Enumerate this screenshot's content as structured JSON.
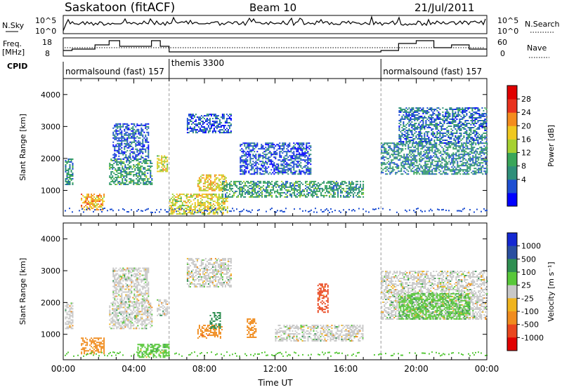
{
  "header": {
    "title": "Saskatoon (fitACF)",
    "beam": "Beam 10",
    "date": "21/Jul/2011"
  },
  "strip_nsky": {
    "left_label": "N.Sky",
    "left_ticks": [
      "10^5",
      "10^0"
    ],
    "right_ticks": [
      "10^5",
      "10^0"
    ],
    "right_label": "N.Search",
    "right_label_style": "dotted"
  },
  "strip_freq": {
    "left_label_line1": "Freq.",
    "left_label_line2": "[MHz]",
    "left_ticks": [
      "18",
      "8"
    ],
    "right_ticks": [
      "60",
      "0"
    ],
    "right_label": "Nave",
    "right_label_style": "dotted"
  },
  "cpid": {
    "label": "CPID",
    "segments": [
      {
        "start_hour": 0,
        "end_hour": 6,
        "text": "normalsound (fast) 157"
      },
      {
        "start_hour": 6,
        "end_hour": 18,
        "text": "themis 3300"
      },
      {
        "start_hour": 18,
        "end_hour": 24,
        "text": "normalsound (fast) 157"
      }
    ]
  },
  "chart_data": [
    {
      "type": "heatmap",
      "name": "power",
      "xlabel": "",
      "ylabel": "Slant Range [km]",
      "xlim": [
        0,
        24
      ],
      "ylim": [
        200,
        4500
      ],
      "yticks": [
        1000,
        2000,
        3000,
        4000
      ],
      "colorbar": {
        "label": "Power [dB]",
        "ticks": [
          "28",
          "24",
          "20",
          "16",
          "12",
          "8",
          "4"
        ],
        "colors": [
          "#0000ff",
          "#1e4fd2",
          "#2f8f7a",
          "#3aa65a",
          "#a6d132",
          "#f0c820",
          "#f48c1e",
          "#e9321e",
          "#e00000"
        ]
      },
      "regions": [
        {
          "t0": 0.1,
          "t1": 0.5,
          "r0": 1200,
          "r1": 2000,
          "level": 12
        },
        {
          "t0": 1.0,
          "t1": 2.3,
          "r0": 400,
          "r1": 900,
          "level": 26
        },
        {
          "t0": 2.6,
          "t1": 5.0,
          "r0": 1200,
          "r1": 2000,
          "level": 14
        },
        {
          "t0": 2.8,
          "t1": 4.8,
          "r0": 2000,
          "r1": 3100,
          "level": 8
        },
        {
          "t0": 5.3,
          "t1": 5.9,
          "r0": 1600,
          "r1": 2100,
          "level": 22
        },
        {
          "t0": 6.0,
          "t1": 9.3,
          "r0": 250,
          "r1": 900,
          "level": 22
        },
        {
          "t0": 7.6,
          "t1": 9.2,
          "r0": 1000,
          "r1": 1500,
          "level": 24
        },
        {
          "t0": 7.0,
          "t1": 9.5,
          "r0": 2800,
          "r1": 3400,
          "level": 8
        },
        {
          "t0": 9.0,
          "t1": 17.0,
          "r0": 800,
          "r1": 1300,
          "level": 14
        },
        {
          "t0": 10.0,
          "t1": 14.0,
          "r0": 1500,
          "r1": 2500,
          "level": 8
        },
        {
          "t0": 18.0,
          "t1": 24.0,
          "r0": 1500,
          "r1": 2500,
          "level": 12
        },
        {
          "t0": 19.0,
          "t1": 24.0,
          "r0": 2500,
          "r1": 3600,
          "level": 10
        }
      ]
    },
    {
      "type": "heatmap",
      "name": "velocity",
      "xlabel": "Time UT",
      "ylabel": "Slant Range [km]",
      "xlim": [
        0,
        24
      ],
      "ylim": [
        200,
        4500
      ],
      "yticks": [
        1000,
        2000,
        3000,
        4000
      ],
      "xticks": [
        "00:00",
        "04:00",
        "08:00",
        "12:00",
        "16:00",
        "20:00",
        "00:00"
      ],
      "colorbar": {
        "label": "Velocity [m s⁻¹]",
        "ticks": [
          "1000",
          "500",
          "100",
          "25",
          "-25",
          "-100",
          "-500",
          "-1000"
        ],
        "colors": [
          "#1428d2",
          "#2a4fa0",
          "#2f8f52",
          "#58c83a",
          "#c8c8c8",
          "#f0b41e",
          "#f08c1e",
          "#e9461e",
          "#e00000"
        ]
      },
      "regions": [
        {
          "t0": 0.1,
          "t1": 0.5,
          "r0": 1200,
          "r1": 2000,
          "level": 0
        },
        {
          "t0": 1.0,
          "t1": 2.3,
          "r0": 400,
          "r1": 900,
          "level": -200
        },
        {
          "t0": 2.6,
          "t1": 5.0,
          "r0": 1200,
          "r1": 2000,
          "level": 0
        },
        {
          "t0": 2.8,
          "t1": 4.8,
          "r0": 2000,
          "r1": 3100,
          "level": 0
        },
        {
          "t0": 5.3,
          "t1": 5.9,
          "r0": 1600,
          "r1": 2100,
          "level": 0
        },
        {
          "t0": 4.2,
          "t1": 6.0,
          "r0": 300,
          "r1": 700,
          "level": 60
        },
        {
          "t0": 7.6,
          "t1": 9.0,
          "r0": 900,
          "r1": 1300,
          "level": -400
        },
        {
          "t0": 8.3,
          "t1": 8.9,
          "r0": 1200,
          "r1": 1700,
          "level": 300
        },
        {
          "t0": 7.0,
          "t1": 9.5,
          "r0": 2500,
          "r1": 3400,
          "level": 0
        },
        {
          "t0": 10.4,
          "t1": 10.9,
          "r0": 900,
          "r1": 1500,
          "level": -300
        },
        {
          "t0": 12.0,
          "t1": 17.0,
          "r0": 800,
          "r1": 1300,
          "level": 0
        },
        {
          "t0": 14.4,
          "t1": 15.0,
          "r0": 1700,
          "r1": 2600,
          "level": -600
        },
        {
          "t0": 18.0,
          "t1": 24.0,
          "r0": 1500,
          "r1": 3000,
          "level": 0
        },
        {
          "t0": 19.0,
          "t1": 23.0,
          "r0": 1500,
          "r1": 2300,
          "level": 80
        }
      ]
    }
  ]
}
